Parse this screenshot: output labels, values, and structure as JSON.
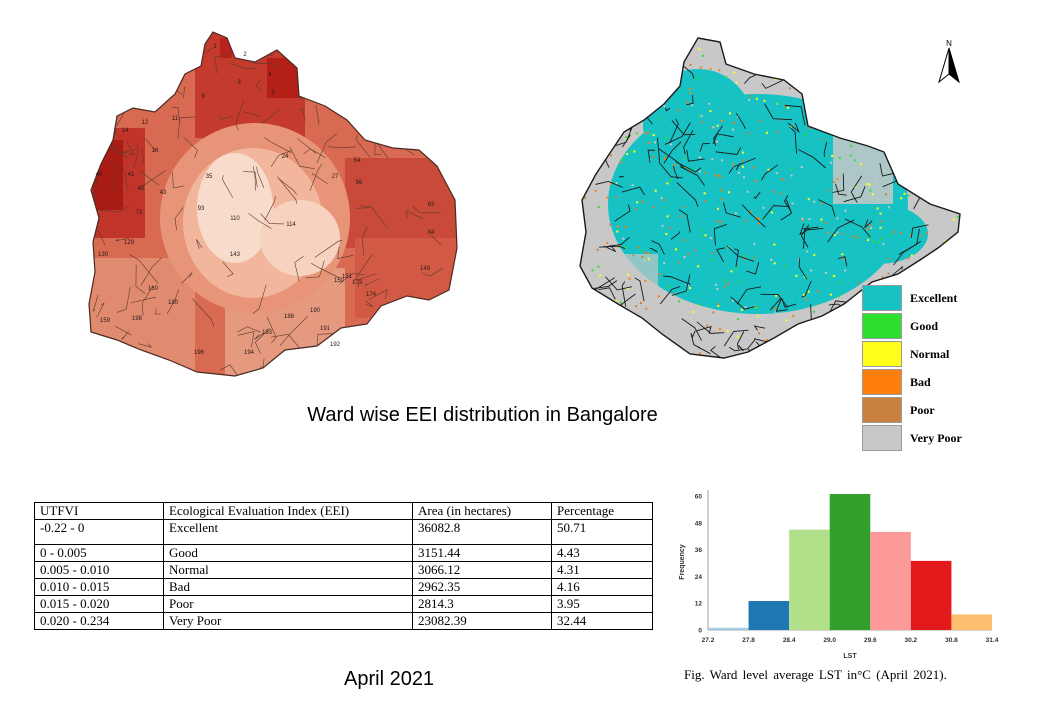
{
  "map_caption": "Ward wise EEI distribution in Bangalore",
  "north_arrow": {
    "label": "N",
    "icon": "north-arrow-icon"
  },
  "legend": [
    {
      "label": "Excellent",
      "color": "#17c2c4"
    },
    {
      "label": "Good",
      "color": "#2de02d"
    },
    {
      "label": "Normal",
      "color": "#ffff1a"
    },
    {
      "label": "Bad",
      "color": "#ff7f0e"
    },
    {
      "label": "Poor",
      "color": "#c8813f"
    },
    {
      "label": "Very Poor",
      "color": "#c8c8c8"
    }
  ],
  "ward_labels": [
    "1",
    "2",
    "3",
    "4",
    "5",
    "9",
    "11",
    "12",
    "14",
    "16",
    "24",
    "27",
    "35",
    "40",
    "41",
    "42",
    "43",
    "54",
    "56",
    "63",
    "73",
    "84",
    "93",
    "110",
    "114",
    "129",
    "130",
    "143",
    "149",
    "150",
    "151",
    "159",
    "160",
    "173",
    "174",
    "180",
    "188",
    "190",
    "191",
    "192",
    "193",
    "194",
    "196",
    "198"
  ],
  "table": {
    "headers": [
      "UTFVI",
      "Ecological Evaluation Index (EEI)",
      "Area (in hectares)",
      "Percentage"
    ],
    "rows": [
      [
        "-0.22 - 0",
        "Excellent",
        "36082.8",
        "50.71"
      ],
      [
        "0 - 0.005",
        "Good",
        "3151.44",
        "4.43"
      ],
      [
        "0.005  -  0.010",
        "Normal",
        "3066.12",
        "4.31"
      ],
      [
        "0.010  -  0.015",
        "Bad",
        "2962.35",
        "4.16"
      ],
      [
        "0.015  -  0.020",
        "Poor",
        "2814.3",
        "3.95"
      ],
      [
        "0.020  -  0.234",
        "Very Poor",
        "23082.39",
        "32.44"
      ]
    ]
  },
  "date_label": "April 2021",
  "histogram_caption": "Fig.  Ward level  average  LST in°C (April  2021).",
  "chart_data": {
    "type": "bar",
    "xlabel": "LST",
    "ylabel": "Frequency",
    "bin_edges": [
      "27.2",
      "27.8",
      "28.4",
      "29.0",
      "29.6",
      "30.2",
      "30.8",
      "31.4"
    ],
    "values": [
      1,
      13,
      45,
      61,
      44,
      31,
      7
    ],
    "colors": [
      "#a6cee3",
      "#1f78b4",
      "#b2df8a",
      "#33a02c",
      "#fb9a99",
      "#e31a1c",
      "#fdbf6f"
    ],
    "y_ticks": [
      "0",
      "12",
      "24",
      "36",
      "48",
      "60"
    ],
    "ylim": [
      0,
      61
    ]
  }
}
